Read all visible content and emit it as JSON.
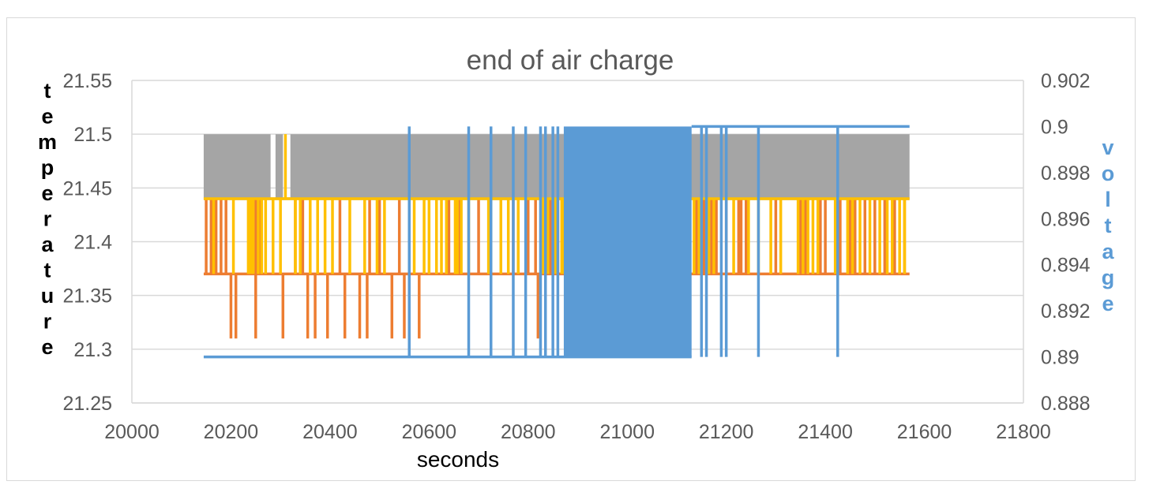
{
  "chart_data": {
    "type": "line",
    "title": "end of air charge",
    "xlabel": "seconds",
    "ylabel_left": "temperature",
    "ylabel_right": "voltage",
    "xlim": [
      20000,
      21800
    ],
    "ylim_left": [
      21.25,
      21.55
    ],
    "ylim_right": [
      0.888,
      0.902
    ],
    "x_ticks": [
      "20000",
      "20200",
      "20400",
      "20600",
      "20800",
      "21000",
      "21200",
      "21400",
      "21600",
      "21800"
    ],
    "y_ticks_left": [
      "21.25",
      "21.3",
      "21.35",
      "21.4",
      "21.45",
      "21.5",
      "21.55"
    ],
    "y_ticks_right": [
      "0.888",
      "0.89",
      "0.892",
      "0.894",
      "0.896",
      "0.898",
      "0.9",
      "0.902"
    ],
    "grid": true,
    "legend": "none",
    "series": [
      {
        "axis": "left",
        "color": "#a5a5a5",
        "base": 21.44,
        "spike": 21.5,
        "x_start": 20145,
        "x_end": 21570,
        "dense_ranges": [
          [
            20145,
            20280
          ],
          [
            20290,
            20305
          ],
          [
            20320,
            21570
          ]
        ],
        "spikes": []
      },
      {
        "axis": "left",
        "color": "#ed7d31",
        "base": 21.37,
        "spike": 21.44,
        "x_start": 20145,
        "x_end": 21570,
        "dense_ranges": [
          [
            20880,
            21125
          ]
        ],
        "spikes": [
          20150,
          20160,
          20170,
          20180,
          20190,
          20240,
          20250,
          20260,
          20330,
          20345,
          20420,
          20480,
          20500,
          20540,
          20560,
          20640,
          20660,
          20700,
          20770,
          20800,
          20815,
          20835,
          20845,
          20860,
          20870,
          21140,
          21155,
          21170,
          21180,
          21200,
          21225,
          21230,
          21240,
          21300,
          21350,
          21360,
          21390,
          21400,
          21430,
          21450,
          21460,
          21480,
          21500,
          21520,
          21540,
          21560
        ],
        "spikes_down": [
          20200,
          20210,
          20250,
          20305,
          20355,
          20370,
          20395,
          20430,
          20460,
          20475,
          20525,
          20550,
          20580,
          20820
        ]
      },
      {
        "axis": "left",
        "color": "#ffc000",
        "base": 21.44,
        "spike": 21.37,
        "x_start": 20145,
        "x_end": 21570,
        "dense_ranges": [
          [
            20650,
            20660
          ],
          [
            20865,
            21125
          ]
        ],
        "spikes": [
          20165,
          20205,
          20235,
          20240,
          20245,
          20255,
          20262,
          20270,
          20285,
          20300,
          20330,
          20340,
          20360,
          20375,
          20390,
          20405,
          20440,
          20470,
          20495,
          20510,
          20570,
          20590,
          20600,
          20615,
          20625,
          20635,
          20665,
          20680,
          20720,
          20745,
          20760,
          20780,
          20830,
          20840,
          20855,
          21135,
          21145,
          21165,
          21175,
          21215,
          21245,
          21265,
          21290,
          21310,
          21345,
          21355,
          21365,
          21375,
          21385,
          21420,
          21445,
          21455,
          21470,
          21490,
          21510,
          21525,
          21535,
          21550,
          21560
        ],
        "spikes_up": [
          20310
        ]
      },
      {
        "axis": "right",
        "color": "#5b9bd5",
        "base": 0.89,
        "spike": 0.9,
        "x_start": 20145,
        "x_end": 21570,
        "dense_ranges": [
          [
            20872,
            21130
          ]
        ],
        "spikes": [
          20560,
          20680,
          20725,
          20770,
          20795,
          20825,
          20835,
          20850,
          20860,
          21150,
          21160,
          21190,
          21200,
          21265,
          21425
        ],
        "high_from": 21130
      }
    ]
  }
}
